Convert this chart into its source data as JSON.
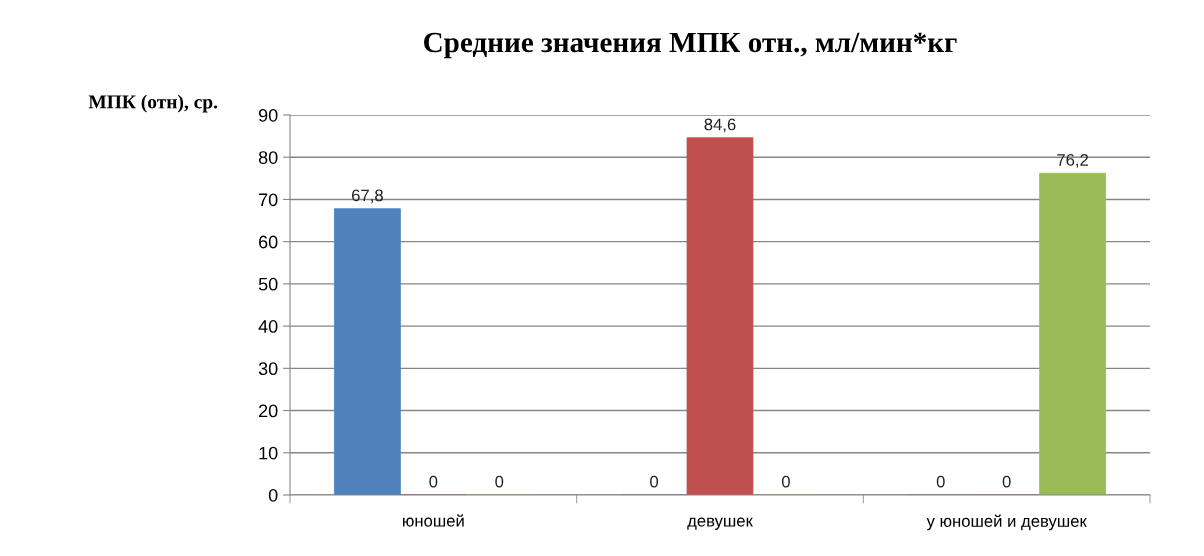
{
  "chart_data": {
    "type": "bar",
    "title": "Средние значения МПК отн., мл/мин*кг",
    "ylabel": "МПК (отн), ср.",
    "categories": [
      "юношей",
      "девушек",
      "у юношей и девушек"
    ],
    "series": [
      {
        "color": "#4f81bd",
        "values": [
          67.8,
          0,
          0
        ],
        "value_labels": [
          "67,8",
          "0",
          "0"
        ]
      },
      {
        "color": "#c0504d",
        "values": [
          0,
          84.6,
          0
        ],
        "value_labels": [
          "0",
          "84,6",
          "0"
        ]
      },
      {
        "color": "#9bbb59",
        "values": [
          0,
          0,
          76.2
        ],
        "value_labels": [
          "0",
          "0",
          "76,2"
        ]
      }
    ],
    "ylim": [
      0,
      90
    ],
    "yticks": [
      0,
      10,
      20,
      30,
      40,
      50,
      60,
      70,
      80,
      90
    ],
    "grid": "y",
    "legend": false
  }
}
